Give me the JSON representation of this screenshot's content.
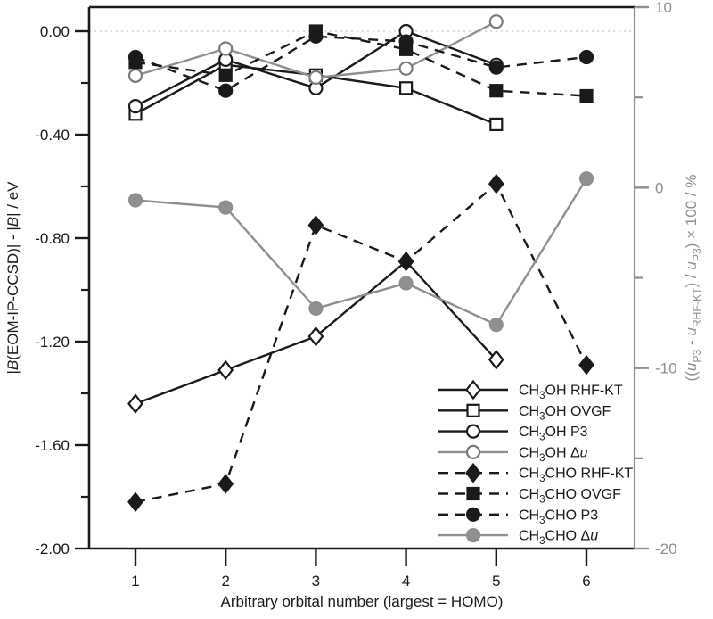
{
  "colors": {
    "black": "#1a1a1a",
    "gray": "#8f8f8f",
    "zero_line": "#c9c9c9",
    "background": "#ffffff"
  },
  "chart_data": {
    "type": "line",
    "title": "",
    "xlabel": "Arbitrary orbital number (largest = HOMO)",
    "x": [
      1,
      2,
      3,
      4,
      5,
      6
    ],
    "x_ticks": [
      "1",
      "2",
      "3",
      "4",
      "5",
      "6"
    ],
    "grid": "off",
    "legend_position": "lower right",
    "left_axis": {
      "label_plain": "|B(EOM-IP-CCSD)| - |B| / eV",
      "label_tokens": [
        {
          "t": "|"
        },
        {
          "t": "B",
          "i": true
        },
        {
          "t": "(EOM-IP-CCSD)| - |"
        },
        {
          "t": "B",
          "i": true
        },
        {
          "t": "| / eV"
        }
      ],
      "range": [
        -2.0,
        0.0931
      ],
      "major_ticks": [
        {
          "v": 0.0,
          "label": "0.00"
        },
        {
          "v": -0.4,
          "label": "-0.40"
        },
        {
          "v": -0.8,
          "label": "-0.80"
        },
        {
          "v": -1.2,
          "label": "-1.20"
        },
        {
          "v": -1.6,
          "label": "-1.60"
        },
        {
          "v": -2.0,
          "label": "-2.00"
        }
      ],
      "minor_ticks": [
        -0.2,
        -0.6,
        -1.0,
        -1.4,
        -1.8
      ],
      "zero_line_at": 0.0
    },
    "right_axis": {
      "label_plain": "((uP3 - uRHF-KT) / uP3) × 100 / %",
      "label_tokens": [
        {
          "t": "(("
        },
        {
          "t": "u",
          "i": true
        },
        {
          "t": "P3",
          "sub": true
        },
        {
          "t": " - "
        },
        {
          "t": "u",
          "i": true
        },
        {
          "t": "RHF-KT",
          "sub": true
        },
        {
          "t": ") / "
        },
        {
          "t": "u",
          "i": true
        },
        {
          "t": "P3",
          "sub": true
        },
        {
          "t": ") × 100 / %"
        }
      ],
      "range": [
        -20,
        10
      ],
      "major_ticks": [
        {
          "v": 10,
          "label": "10"
        },
        {
          "v": 0,
          "label": "0"
        },
        {
          "v": -10,
          "label": "-10"
        },
        {
          "v": -20,
          "label": "-20"
        }
      ],
      "minor_ticks": [
        5,
        -5,
        -15
      ]
    },
    "series": [
      {
        "id": "ch3oh-rhf-kt",
        "label_plain": "CH3OH RHF-KT",
        "label_tokens": [
          {
            "t": "CH"
          },
          {
            "t": "3",
            "sub": true
          },
          {
            "t": "OH RHF-KT"
          }
        ],
        "axis": "left",
        "line": "solid",
        "color": "#1a1a1a",
        "marker": "diamond",
        "marker_fill": "open",
        "values": [
          -1.44,
          -1.31,
          -1.18,
          -0.89,
          -1.27
        ]
      },
      {
        "id": "ch3oh-ovgf",
        "label_plain": "CH3OH OVGF",
        "label_tokens": [
          {
            "t": "CH"
          },
          {
            "t": "3",
            "sub": true
          },
          {
            "t": "OH OVGF"
          }
        ],
        "axis": "left",
        "line": "solid",
        "color": "#1a1a1a",
        "marker": "square",
        "marker_fill": "open",
        "values": [
          -0.32,
          -0.13,
          -0.17,
          -0.22,
          -0.36
        ]
      },
      {
        "id": "ch3oh-p3",
        "label_plain": "CH3OH P3",
        "label_tokens": [
          {
            "t": "CH"
          },
          {
            "t": "3",
            "sub": true
          },
          {
            "t": "OH P3"
          }
        ],
        "axis": "left",
        "line": "solid",
        "color": "#1a1a1a",
        "marker": "circle",
        "marker_fill": "open",
        "values": [
          -0.29,
          -0.11,
          -0.22,
          0.0,
          -0.13
        ]
      },
      {
        "id": "ch3oh-delta-u",
        "label_plain": "CH3OH Δu",
        "label_tokens": [
          {
            "t": "CH"
          },
          {
            "t": "3",
            "sub": true
          },
          {
            "t": "OH Δ"
          },
          {
            "t": "u",
            "i": true
          }
        ],
        "axis": "right",
        "line": "solid",
        "color": "#8f8f8f",
        "marker": "circle",
        "marker_fill": "open",
        "marker_stroke": "#7a7a7a",
        "values": [
          6.2,
          7.7,
          6.1,
          6.6,
          9.2
        ]
      },
      {
        "id": "ch3cho-rhf-kt",
        "label_plain": "CH3CHO RHF-KT",
        "label_tokens": [
          {
            "t": "CH"
          },
          {
            "t": "3",
            "sub": true
          },
          {
            "t": "CHO RHF-KT"
          }
        ],
        "axis": "left",
        "line": "dashed",
        "color": "#1a1a1a",
        "marker": "diamond",
        "marker_fill": "filled",
        "values": [
          -1.82,
          -1.75,
          -0.75,
          -0.89,
          -0.59,
          -1.29
        ]
      },
      {
        "id": "ch3cho-ovgf",
        "label_plain": "CH3CHO OVGF",
        "label_tokens": [
          {
            "t": "CH"
          },
          {
            "t": "3",
            "sub": true
          },
          {
            "t": "CHO OVGF"
          }
        ],
        "axis": "left",
        "line": "dashed",
        "color": "#1a1a1a",
        "marker": "square",
        "marker_fill": "filled",
        "values": [
          -0.12,
          -0.17,
          0.0,
          -0.07,
          -0.23,
          -0.25
        ]
      },
      {
        "id": "ch3cho-p3",
        "label_plain": "CH3CHO P3",
        "label_tokens": [
          {
            "t": "CH"
          },
          {
            "t": "3",
            "sub": true
          },
          {
            "t": "CHO P3"
          }
        ],
        "axis": "left",
        "line": "dashed",
        "color": "#1a1a1a",
        "marker": "circle",
        "marker_fill": "filled",
        "values": [
          -0.1,
          -0.23,
          -0.02,
          -0.04,
          -0.14,
          -0.1
        ]
      },
      {
        "id": "ch3cho-delta-u",
        "label_plain": "CH3CHO Δu",
        "label_tokens": [
          {
            "t": "CH"
          },
          {
            "t": "3",
            "sub": true
          },
          {
            "t": "CHO Δ"
          },
          {
            "t": "u",
            "i": true
          }
        ],
        "axis": "right",
        "line": "solid",
        "color": "#8f8f8f",
        "marker": "circle",
        "marker_fill": "filled",
        "values": [
          -0.7,
          -1.1,
          -6.7,
          -5.3,
          -7.6,
          0.5
        ]
      }
    ]
  }
}
